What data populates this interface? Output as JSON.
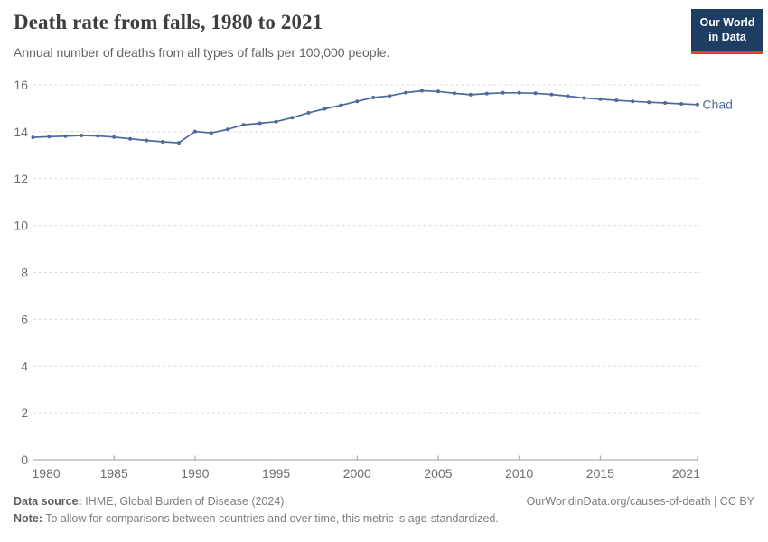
{
  "header": {
    "title": "Death rate from falls, 1980 to 2021",
    "subtitle": "Annual number of deaths from all types of falls per 100,000 people.",
    "logo": {
      "line1": "Our World",
      "line2": "in Data",
      "bg_color": "#1d3d63",
      "accent_color": "#e23d33"
    }
  },
  "chart_data": {
    "type": "line",
    "title": "Death rate from falls, 1980 to 2021",
    "xlabel": "",
    "ylabel": "",
    "ylim": [
      0,
      16
    ],
    "grid": "horizontal-dashed",
    "legend_position": "end-of-line-label",
    "x_ticks": [
      1980,
      1985,
      1990,
      1995,
      2000,
      2005,
      2010,
      2015,
      2021
    ],
    "y_ticks": [
      0,
      2,
      4,
      6,
      8,
      10,
      12,
      14,
      16
    ],
    "x": [
      1980,
      1981,
      1982,
      1983,
      1984,
      1985,
      1986,
      1987,
      1988,
      1989,
      1990,
      1991,
      1992,
      1993,
      1994,
      1995,
      1996,
      1997,
      1998,
      1999,
      2000,
      2001,
      2002,
      2003,
      2004,
      2005,
      2006,
      2007,
      2008,
      2009,
      2010,
      2011,
      2012,
      2013,
      2014,
      2015,
      2016,
      2017,
      2018,
      2019,
      2020,
      2021
    ],
    "series": [
      {
        "name": "Chad",
        "color": "#4c6a9c",
        "values": [
          13.76,
          13.79,
          13.81,
          13.84,
          13.82,
          13.77,
          13.7,
          13.63,
          13.57,
          13.53,
          14.01,
          13.95,
          14.1,
          14.3,
          14.36,
          14.43,
          14.6,
          14.81,
          14.98,
          15.13,
          15.3,
          15.46,
          15.53,
          15.67,
          15.75,
          15.72,
          15.64,
          15.58,
          15.63,
          15.66,
          15.66,
          15.64,
          15.59,
          15.52,
          15.44,
          15.39,
          15.34,
          15.3,
          15.26,
          15.23,
          15.19,
          15.16
        ]
      }
    ],
    "axis_label_color": "#6e6e6e",
    "gridline_color": "#d9d9d9",
    "axis_line_color": "#9c9c9c"
  },
  "footer": {
    "source_label": "Data source:",
    "source_text": " IHME, Global Burden of Disease (2024)",
    "link": "OurWorldinData.org/causes-of-death | CC BY",
    "note_label": "Note:",
    "note_text": " To allow for comparisons between countries and over time, this metric is age-standardized."
  }
}
